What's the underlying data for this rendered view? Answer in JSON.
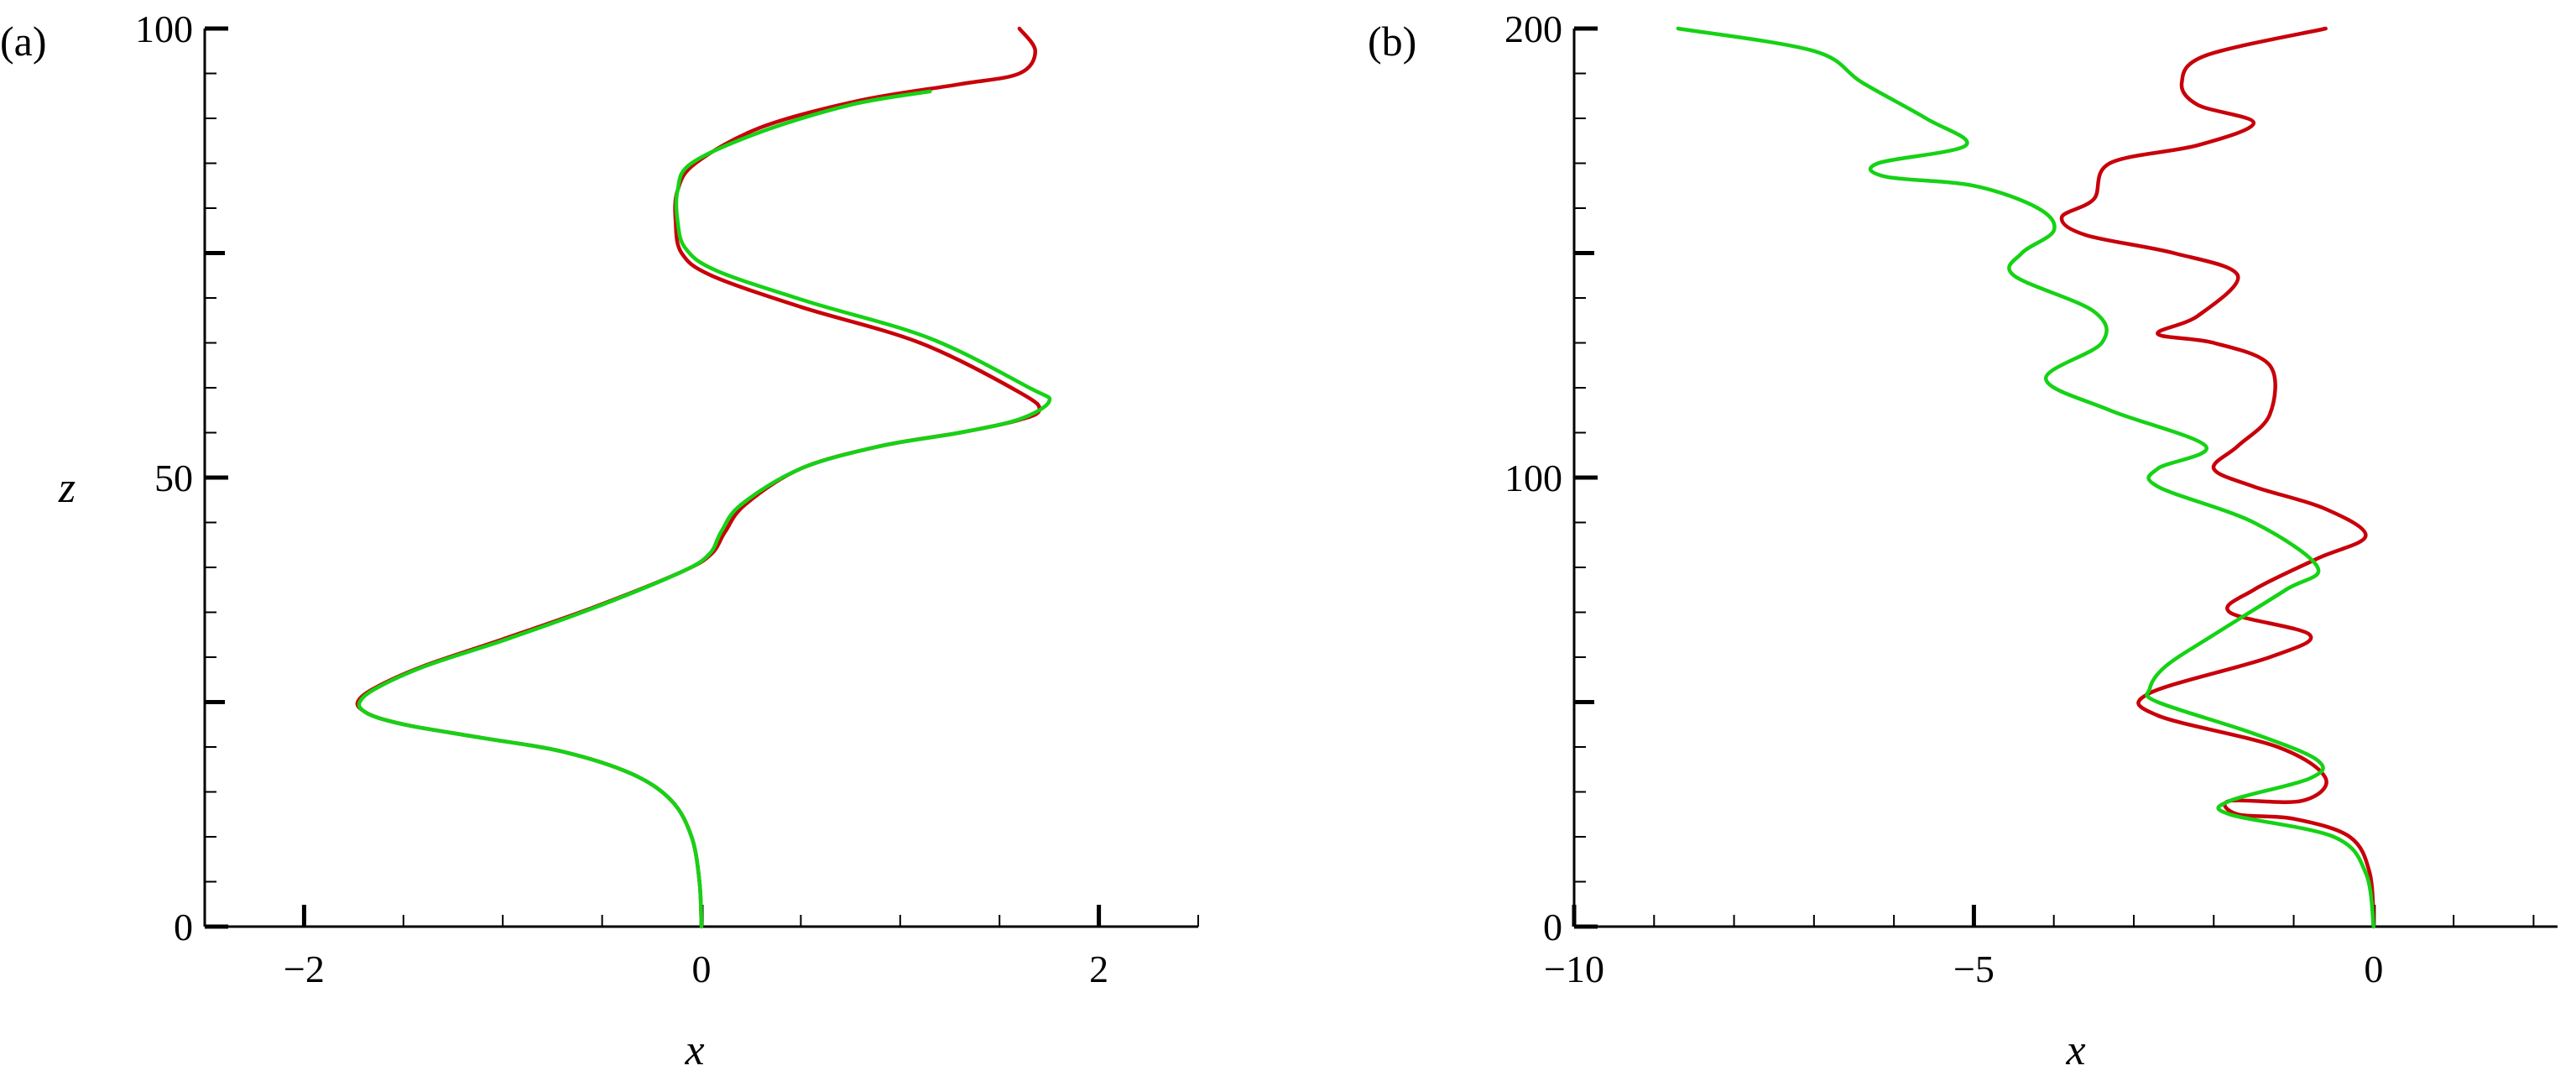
{
  "chart_data": [
    {
      "type": "line",
      "panel_label": "(a)",
      "xlabel": "x",
      "ylabel": "z",
      "xlim": [
        -2.5,
        2.5
      ],
      "ylim": [
        0,
        100
      ],
      "xticks": [
        -2,
        0,
        2
      ],
      "xtick_labels": [
        "−2",
        "0",
        "2"
      ],
      "x_minor_step": 0.5,
      "yticks": [
        0,
        50,
        100
      ],
      "ytick_labels": [
        "0",
        "50",
        "100"
      ],
      "y_minor_step": 5,
      "grid": false,
      "series": [
        {
          "color": "#c8000a",
          "x": [
            0.0,
            -0.01,
            -0.05,
            -0.15,
            -0.35,
            -0.7,
            -1.1,
            -1.45,
            -1.62,
            -1.7,
            -1.73,
            -1.65,
            -1.4,
            -1.0,
            -0.55,
            -0.1,
            0.05,
            0.12,
            0.22,
            0.5,
            0.9,
            1.3,
            1.58,
            1.7,
            1.6,
            1.1,
            0.5,
            0.05,
            -0.1,
            -0.13,
            -0.12,
            -0.03,
            0.3,
            0.8,
            1.3,
            1.6,
            1.68,
            1.6
          ],
          "y": [
            0,
            5,
            10,
            14,
            17,
            19.5,
            21,
            22.3,
            23.2,
            24,
            25,
            26.5,
            29,
            32,
            35.5,
            39.5,
            41.5,
            44,
            47,
            51,
            53.5,
            55,
            56.3,
            57.5,
            59.5,
            65,
            69,
            72.5,
            75,
            78.5,
            82,
            85,
            89,
            92,
            93.8,
            95,
            97.5,
            100
          ]
        },
        {
          "color": "#15d215",
          "x": [
            0.0,
            -0.01,
            -0.05,
            -0.15,
            -0.35,
            -0.7,
            -1.1,
            -1.45,
            -1.62,
            -1.7,
            -1.72,
            -1.64,
            -1.39,
            -0.98,
            -0.54,
            -0.1,
            0.04,
            0.1,
            0.2,
            0.5,
            0.9,
            1.3,
            1.6,
            1.75,
            1.65,
            1.15,
            0.55,
            0.08,
            -0.08,
            -0.12,
            -0.12,
            -0.05,
            0.3,
            0.75,
            1.15
          ],
          "y": [
            0,
            5,
            10,
            14,
            17,
            19.5,
            21,
            22.3,
            23.2,
            24,
            25,
            26.5,
            29,
            32,
            35.5,
            39.5,
            41.5,
            44,
            47,
            51,
            53.5,
            55,
            56.5,
            58.5,
            60,
            65.5,
            69.5,
            73,
            75.5,
            78.5,
            82,
            85,
            88.5,
            91.5,
            93
          ]
        }
      ]
    },
    {
      "type": "line",
      "panel_label": "(b)",
      "xlabel": "x",
      "ylabel": "",
      "xlim": [
        -10,
        2.3
      ],
      "ylim": [
        0,
        200
      ],
      "xticks": [
        -10,
        -5,
        0
      ],
      "xtick_labels": [
        "−10",
        "−5",
        "0"
      ],
      "x_minor_step": 1,
      "yticks": [
        0,
        100,
        200
      ],
      "ytick_labels": [
        "0",
        "100",
        "200"
      ],
      "y_minor_step": 10,
      "grid": false,
      "series": [
        {
          "color": "#c8000a",
          "x": [
            0.0,
            -0.05,
            -0.3,
            -1.0,
            -1.7,
            -1.8,
            -0.9,
            -0.6,
            -1.2,
            -2.7,
            -2.8,
            -1.3,
            -0.8,
            -1.8,
            -1.5,
            -0.7,
            -0.1,
            -0.6,
            -1.5,
            -2.0,
            -1.7,
            -1.3,
            -1.3,
            -2.0,
            -2.7,
            -2.2,
            -1.7,
            -2.5,
            -3.6,
            -3.9,
            -3.5,
            -3.3,
            -2.2,
            -1.5,
            -2.2,
            -2.4,
            -2.1,
            -0.6
          ],
          "y": [
            0,
            12,
            20,
            24,
            25,
            28,
            28,
            33,
            40,
            47,
            52,
            60,
            65,
            70,
            75,
            82,
            87,
            93,
            98,
            102,
            107,
            114,
            125,
            130,
            132,
            136,
            145,
            150,
            154,
            158,
            162,
            170,
            174,
            179,
            183,
            188,
            194,
            200
          ]
        },
        {
          "color": "#15d215",
          "x": [
            0.0,
            -0.1,
            -0.5,
            -1.8,
            -1.8,
            -0.8,
            -0.7,
            -1.5,
            -2.7,
            -2.8,
            -2.6,
            -2.0,
            -1.1,
            -0.7,
            -1.5,
            -2.7,
            -2.7,
            -2.1,
            -3.3,
            -4.1,
            -3.4,
            -3.5,
            -4.5,
            -4.4,
            -4.0,
            -4.2,
            -5.0,
            -6.1,
            -6.2,
            -5.1,
            -5.6,
            -6.4,
            -7.0,
            -8.7
          ],
          "y": [
            0,
            12,
            20,
            25,
            28,
            33,
            37,
            43,
            50,
            53,
            58,
            65,
            75,
            80,
            90,
            98,
            102,
            107,
            115,
            122,
            130,
            137,
            145,
            150,
            155,
            160,
            165,
            167,
            170,
            174,
            180,
            188,
            195,
            200
          ]
        }
      ]
    }
  ]
}
